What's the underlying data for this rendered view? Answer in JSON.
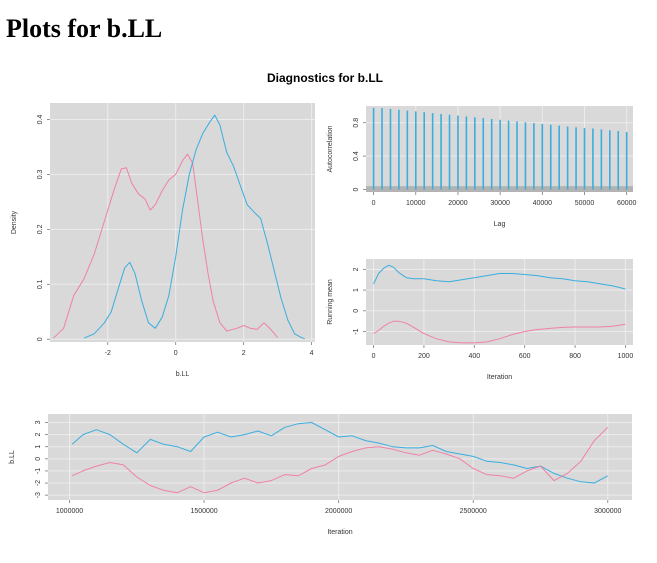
{
  "page": {
    "title": "Plots for b.LL"
  },
  "figure": {
    "title": "Diagnostics for b.LL"
  },
  "colors": {
    "panel": "#d9d9d9",
    "grid": "#ececec",
    "axis": "#7a7a7a",
    "series_a": "#f081a7",
    "series_b": "#3aaedf"
  },
  "chart_data": [
    {
      "type": "line",
      "name": "density",
      "xlabel": "b.LL",
      "ylabel": "Density",
      "xlim": [
        -3.7,
        4.1
      ],
      "ylim": [
        -0.005,
        0.43
      ],
      "xticks": [
        -2,
        0,
        2,
        4
      ],
      "yticks": [
        0.0,
        0.1,
        0.2,
        0.3,
        0.4
      ],
      "series": [
        {
          "color": "#f081a7",
          "x": [
            -3.6,
            -3.3,
            -3.0,
            -2.7,
            -2.4,
            -2.1,
            -1.8,
            -1.6,
            -1.45,
            -1.3,
            -1.1,
            -0.9,
            -0.75,
            -0.6,
            -0.4,
            -0.2,
            0.0,
            0.2,
            0.35,
            0.5,
            0.65,
            0.8,
            0.95,
            1.1,
            1.3,
            1.5,
            1.8,
            2.0,
            2.2,
            2.4,
            2.6,
            2.8,
            3.0
          ],
          "y": [
            0.002,
            0.02,
            0.08,
            0.11,
            0.155,
            0.215,
            0.275,
            0.31,
            0.312,
            0.285,
            0.265,
            0.255,
            0.235,
            0.245,
            0.27,
            0.29,
            0.3,
            0.325,
            0.337,
            0.32,
            0.25,
            0.18,
            0.12,
            0.07,
            0.03,
            0.015,
            0.02,
            0.025,
            0.02,
            0.018,
            0.03,
            0.018,
            0.003
          ]
        },
        {
          "color": "#3aaedf",
          "x": [
            -2.7,
            -2.4,
            -2.1,
            -1.9,
            -1.7,
            -1.5,
            -1.35,
            -1.2,
            -1.0,
            -0.8,
            -0.6,
            -0.4,
            -0.2,
            0.0,
            0.2,
            0.4,
            0.6,
            0.8,
            1.0,
            1.15,
            1.3,
            1.5,
            1.7,
            1.9,
            2.1,
            2.3,
            2.5,
            2.7,
            2.9,
            3.1,
            3.3,
            3.5,
            3.7,
            3.8
          ],
          "y": [
            0.002,
            0.01,
            0.03,
            0.05,
            0.09,
            0.13,
            0.14,
            0.12,
            0.07,
            0.03,
            0.02,
            0.04,
            0.08,
            0.15,
            0.235,
            0.3,
            0.345,
            0.375,
            0.395,
            0.408,
            0.39,
            0.34,
            0.315,
            0.28,
            0.245,
            0.232,
            0.22,
            0.175,
            0.125,
            0.075,
            0.035,
            0.01,
            0.003,
            0.001
          ]
        }
      ]
    },
    {
      "type": "bar",
      "name": "autocorrelation",
      "xlabel": "Lag",
      "ylabel": "Autocorrelation",
      "xlim": [
        -1800,
        61500
      ],
      "ylim": [
        -0.03,
        1.0
      ],
      "xticks": [
        0,
        10000,
        20000,
        30000,
        40000,
        50000,
        60000
      ],
      "yticks": [
        0.0,
        0.4,
        0.8
      ],
      "confidence_band": [
        -0.03,
        0.04
      ],
      "color": "#3aaedf",
      "lags": [
        0,
        2000,
        4000,
        6000,
        8000,
        10000,
        12000,
        14000,
        16000,
        18000,
        20000,
        22000,
        24000,
        26000,
        28000,
        30000,
        32000,
        34000,
        36000,
        38000,
        40000,
        42000,
        44000,
        46000,
        48000,
        50000,
        52000,
        54000,
        56000,
        58000,
        60000
      ],
      "values": [
        0.98,
        0.975,
        0.965,
        0.955,
        0.945,
        0.935,
        0.925,
        0.915,
        0.905,
        0.895,
        0.885,
        0.875,
        0.865,
        0.855,
        0.845,
        0.835,
        0.825,
        0.815,
        0.805,
        0.795,
        0.785,
        0.775,
        0.765,
        0.755,
        0.745,
        0.735,
        0.73,
        0.72,
        0.71,
        0.7,
        0.69
      ]
    },
    {
      "type": "line",
      "name": "running-mean",
      "xlabel": "Iteration",
      "ylabel": "Running mean",
      "xlim": [
        -30,
        1030
      ],
      "ylim": [
        -1.65,
        2.5
      ],
      "xticks": [
        0,
        200,
        400,
        600,
        800,
        1000
      ],
      "yticks": [
        -1,
        0,
        1,
        2
      ],
      "series": [
        {
          "color": "#3aaedf",
          "x": [
            0,
            20,
            40,
            60,
            80,
            100,
            130,
            160,
            200,
            250,
            300,
            350,
            400,
            450,
            500,
            550,
            600,
            650,
            700,
            750,
            800,
            850,
            900,
            950,
            1000
          ],
          "y": [
            1.3,
            1.8,
            2.05,
            2.2,
            2.1,
            1.85,
            1.6,
            1.55,
            1.55,
            1.45,
            1.4,
            1.5,
            1.6,
            1.7,
            1.8,
            1.8,
            1.75,
            1.7,
            1.6,
            1.55,
            1.45,
            1.4,
            1.3,
            1.2,
            1.05
          ]
        },
        {
          "color": "#f081a7",
          "x": [
            0,
            20,
            40,
            60,
            80,
            100,
            130,
            160,
            200,
            250,
            300,
            350,
            400,
            450,
            500,
            550,
            600,
            650,
            700,
            750,
            800,
            850,
            900,
            950,
            1000
          ],
          "y": [
            -1.1,
            -0.95,
            -0.75,
            -0.6,
            -0.5,
            -0.5,
            -0.6,
            -0.8,
            -1.1,
            -1.35,
            -1.5,
            -1.55,
            -1.55,
            -1.5,
            -1.35,
            -1.15,
            -1.0,
            -0.9,
            -0.85,
            -0.8,
            -0.78,
            -0.78,
            -0.78,
            -0.75,
            -0.65
          ]
        }
      ]
    },
    {
      "type": "line",
      "name": "trace",
      "xlabel": "Iteration",
      "ylabel": "b.LL",
      "xlim": [
        920000,
        3090000
      ],
      "ylim": [
        -3.4,
        3.7
      ],
      "xticks": [
        1000000,
        1500000,
        2000000,
        2500000,
        3000000
      ],
      "xtick_labels": [
        "1000000",
        "1500000",
        "2000000",
        "2500000",
        "3000000"
      ],
      "yticks": [
        -3,
        -2,
        -1,
        0,
        1,
        2,
        3
      ],
      "series": [
        {
          "color": "#3aaedf",
          "x": [
            1010000,
            1050000,
            1100000,
            1150000,
            1200000,
            1250000,
            1300000,
            1350000,
            1400000,
            1450000,
            1500000,
            1550000,
            1600000,
            1650000,
            1700000,
            1750000,
            1800000,
            1850000,
            1900000,
            1950000,
            2000000,
            2050000,
            2100000,
            2150000,
            2200000,
            2250000,
            2300000,
            2350000,
            2400000,
            2450000,
            2500000,
            2550000,
            2600000,
            2650000,
            2700000,
            2750000,
            2800000,
            2850000,
            2900000,
            2950000,
            3000000
          ],
          "y": [
            1.2,
            2.0,
            2.4,
            2.0,
            1.2,
            0.5,
            1.6,
            1.2,
            1.0,
            0.6,
            1.8,
            2.2,
            1.8,
            2.0,
            2.3,
            1.9,
            2.6,
            2.9,
            3.0,
            2.4,
            1.8,
            1.9,
            1.5,
            1.3,
            1.0,
            0.9,
            0.9,
            1.1,
            0.6,
            0.4,
            0.2,
            -0.2,
            -0.3,
            -0.5,
            -0.8,
            -0.6,
            -1.2,
            -1.6,
            -1.9,
            -2.0,
            -1.4
          ]
        },
        {
          "color": "#f081a7",
          "x": [
            1010000,
            1050000,
            1100000,
            1150000,
            1200000,
            1250000,
            1300000,
            1350000,
            1400000,
            1450000,
            1500000,
            1550000,
            1600000,
            1650000,
            1700000,
            1750000,
            1800000,
            1850000,
            1900000,
            1950000,
            2000000,
            2050000,
            2100000,
            2150000,
            2200000,
            2250000,
            2300000,
            2350000,
            2400000,
            2450000,
            2500000,
            2550000,
            2600000,
            2650000,
            2700000,
            2750000,
            2800000,
            2850000,
            2900000,
            2950000,
            3000000
          ],
          "y": [
            -1.4,
            -1.0,
            -0.6,
            -0.3,
            -0.5,
            -1.5,
            -2.2,
            -2.6,
            -2.8,
            -2.3,
            -2.8,
            -2.6,
            -2.0,
            -1.6,
            -2.0,
            -1.8,
            -1.3,
            -1.4,
            -0.8,
            -0.5,
            0.2,
            0.6,
            0.9,
            1.0,
            0.8,
            0.5,
            0.3,
            0.7,
            0.4,
            0.0,
            -0.8,
            -1.3,
            -1.4,
            -1.6,
            -1.0,
            -0.6,
            -1.8,
            -1.2,
            -0.2,
            1.5,
            2.6
          ]
        }
      ]
    }
  ]
}
